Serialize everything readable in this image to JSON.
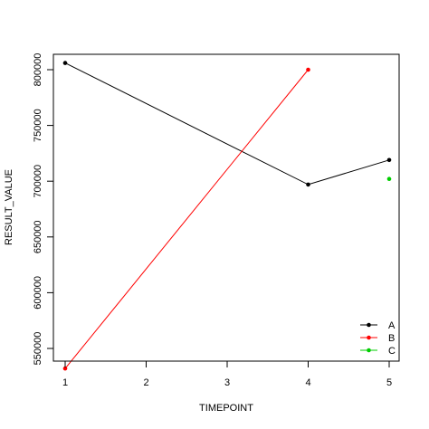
{
  "chart_data": {
    "type": "line",
    "title": "",
    "xlabel": "TIMEPOINT",
    "ylabel": "RESULT_VALUE",
    "xlim": [
      1,
      5
    ],
    "ylim": [
      530000,
      810000
    ],
    "x_ticks": [
      1,
      2,
      3,
      4,
      5
    ],
    "y_ticks": [
      550000,
      600000,
      650000,
      700000,
      750000,
      800000
    ],
    "grid": false,
    "legend_position": "bottom-right",
    "series": [
      {
        "name": "A",
        "color": "#000000",
        "x": [
          1,
          4,
          5
        ],
        "y": [
          806000,
          697000,
          719000
        ]
      },
      {
        "name": "B",
        "color": "#ff0000",
        "x": [
          1,
          4
        ],
        "y": [
          532000,
          800000
        ]
      },
      {
        "name": "C",
        "color": "#00cd00",
        "x": [
          5
        ],
        "y": [
          702000
        ]
      }
    ]
  }
}
